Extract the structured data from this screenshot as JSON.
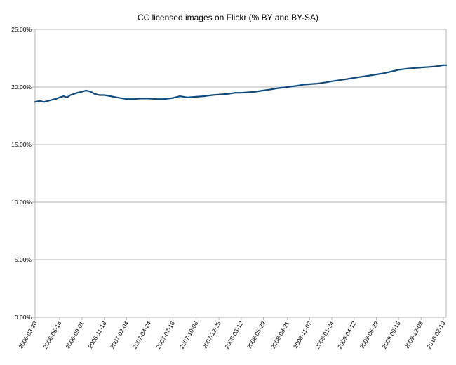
{
  "chart_data": {
    "type": "line",
    "title": "CC licensed images on Flickr (% BY and BY-SA)",
    "xlabel": "",
    "ylabel": "",
    "ylim": [
      0,
      25
    ],
    "y_ticks": [
      "0.00%",
      "5.00%",
      "10.00%",
      "15.00%",
      "20.00%",
      "25.00%"
    ],
    "y_tick_values": [
      0,
      5,
      10,
      15,
      20,
      25
    ],
    "x_ticks": [
      "2006-03-20",
      "2006-06-14",
      "2006-09-01",
      "2006-11-18",
      "2007-02-04",
      "2007-04-24",
      "2007-07-16",
      "2007-10-06",
      "2007-12-25",
      "2008-03-12",
      "2008-05-29",
      "2008-08-21",
      "2008-11-07",
      "2009-01-24",
      "2009-04-12",
      "2009-06-29",
      "2009-09-15",
      "2009-12-03",
      "2010-02-19"
    ],
    "grid": true,
    "legend": "none",
    "colors": {
      "line": "#0f4a7e",
      "grid": "#b3b3b3",
      "axis": "#b3b3b3"
    },
    "series": [
      {
        "x": [
          "2006-03-20",
          "2006-04-05",
          "2006-04-20",
          "2006-05-05",
          "2006-05-20",
          "2006-06-05",
          "2006-06-14",
          "2006-06-28",
          "2006-07-10",
          "2006-07-22",
          "2006-08-03",
          "2006-08-15",
          "2006-09-01",
          "2006-09-15",
          "2006-10-01",
          "2006-10-15",
          "2006-11-01",
          "2006-11-18",
          "2006-12-10",
          "2007-01-01",
          "2007-01-25",
          "2007-02-04",
          "2007-03-01",
          "2007-03-25",
          "2007-04-24",
          "2007-05-20",
          "2007-06-15",
          "2007-07-16",
          "2007-08-10",
          "2007-09-05",
          "2007-10-06",
          "2007-11-01",
          "2007-12-01",
          "2007-12-25",
          "2008-01-25",
          "2008-02-20",
          "2008-03-12",
          "2008-04-10",
          "2008-05-01",
          "2008-05-29",
          "2008-06-25",
          "2008-07-20",
          "2008-08-21",
          "2008-09-20",
          "2008-10-15",
          "2008-11-07",
          "2008-12-05",
          "2009-01-01",
          "2009-01-24",
          "2009-02-20",
          "2009-03-20",
          "2009-04-12",
          "2009-05-10",
          "2009-06-05",
          "2009-06-29",
          "2009-07-25",
          "2009-08-20",
          "2009-09-15",
          "2009-10-15",
          "2009-11-10",
          "2009-12-03",
          "2010-01-01",
          "2010-01-25",
          "2010-02-19",
          "2010-03-01"
        ],
        "values": [
          18.7,
          18.8,
          18.7,
          18.8,
          18.9,
          19.0,
          19.1,
          19.2,
          19.1,
          19.3,
          19.4,
          19.5,
          19.6,
          19.7,
          19.6,
          19.4,
          19.3,
          19.3,
          19.2,
          19.1,
          19.0,
          18.95,
          18.95,
          19.0,
          19.0,
          18.95,
          18.95,
          19.05,
          19.2,
          19.1,
          19.15,
          19.2,
          19.3,
          19.35,
          19.4,
          19.5,
          19.5,
          19.55,
          19.6,
          19.7,
          19.8,
          19.9,
          20.0,
          20.1,
          20.2,
          20.25,
          20.3,
          20.4,
          20.5,
          20.6,
          20.7,
          20.8,
          20.9,
          21.0,
          21.1,
          21.2,
          21.35,
          21.5,
          21.6,
          21.65,
          21.7,
          21.75,
          21.8,
          21.9,
          21.9
        ]
      }
    ]
  }
}
